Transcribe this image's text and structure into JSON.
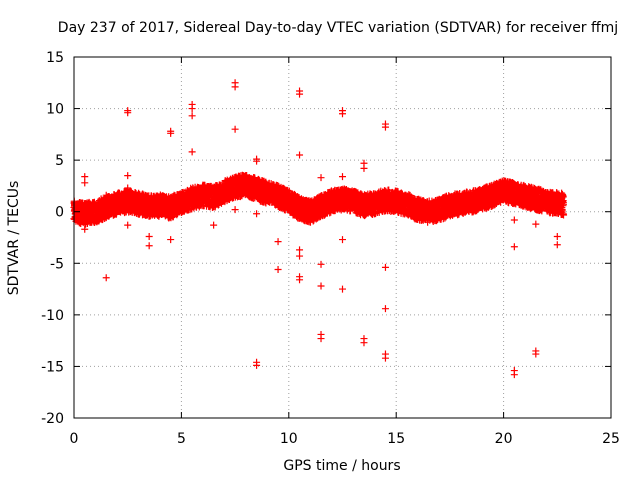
{
  "chart_data": {
    "type": "scatter",
    "title": "Day 237 of 2017, Sidereal Day-to-day VTEC variation (SDTVAR) for receiver ffmj",
    "xlabel": "GPS time / hours",
    "ylabel": "SDTVAR / TECUs",
    "xlim": [
      0,
      25
    ],
    "ylim": [
      -20,
      15
    ],
    "x_ticks": [
      0,
      5,
      10,
      15,
      20,
      25
    ],
    "y_ticks": [
      -20,
      -15,
      -10,
      -5,
      0,
      5,
      10,
      15
    ],
    "grid": true,
    "marker": "plus",
    "series_color": "#ff0000",
    "series": [
      {
        "name": "SDTVAR",
        "baseline": [
          [
            0.0,
            0.0
          ],
          [
            0.5,
            -0.2
          ],
          [
            1.0,
            0.0
          ],
          [
            1.5,
            0.4
          ],
          [
            2.0,
            0.8
          ],
          [
            2.5,
            1.0
          ],
          [
            3.0,
            0.8
          ],
          [
            3.5,
            0.5
          ],
          [
            4.0,
            0.6
          ],
          [
            4.5,
            0.4
          ],
          [
            5.0,
            0.9
          ],
          [
            5.5,
            1.3
          ],
          [
            6.0,
            1.6
          ],
          [
            6.5,
            1.4
          ],
          [
            7.0,
            2.0
          ],
          [
            7.5,
            2.4
          ],
          [
            8.0,
            2.6
          ],
          [
            8.5,
            2.2
          ],
          [
            9.0,
            1.8
          ],
          [
            9.5,
            1.5
          ],
          [
            10.0,
            1.0
          ],
          [
            10.5,
            0.3
          ],
          [
            11.0,
            0.0
          ],
          [
            11.5,
            0.5
          ],
          [
            12.0,
            1.0
          ],
          [
            12.5,
            1.2
          ],
          [
            13.0,
            1.0
          ],
          [
            13.5,
            0.6
          ],
          [
            14.0,
            0.8
          ],
          [
            14.5,
            1.1
          ],
          [
            15.0,
            1.0
          ],
          [
            15.5,
            0.7
          ],
          [
            16.0,
            0.2
          ],
          [
            16.5,
            0.0
          ],
          [
            17.0,
            0.2
          ],
          [
            17.5,
            0.6
          ],
          [
            18.0,
            0.8
          ],
          [
            18.5,
            1.0
          ],
          [
            19.0,
            1.2
          ],
          [
            19.5,
            1.6
          ],
          [
            20.0,
            2.0
          ],
          [
            20.5,
            1.8
          ],
          [
            21.0,
            1.5
          ],
          [
            21.5,
            1.2
          ],
          [
            22.0,
            1.0
          ],
          [
            22.5,
            0.8
          ],
          [
            22.8,
            0.6
          ]
        ],
        "scatter_amplitude": 1.3,
        "outliers": [
          [
            0.5,
            3.4
          ],
          [
            0.5,
            2.8
          ],
          [
            0.5,
            -1.7
          ],
          [
            1.5,
            1.6
          ],
          [
            1.5,
            -6.4
          ],
          [
            2.5,
            9.8
          ],
          [
            2.5,
            9.6
          ],
          [
            2.5,
            3.5
          ],
          [
            2.5,
            2.3
          ],
          [
            2.5,
            -1.3
          ],
          [
            3.5,
            -2.4
          ],
          [
            3.5,
            -3.3
          ],
          [
            4.5,
            7.8
          ],
          [
            4.5,
            7.6
          ],
          [
            4.5,
            -2.7
          ],
          [
            5.5,
            10.4
          ],
          [
            5.5,
            10.0
          ],
          [
            5.5,
            9.3
          ],
          [
            5.5,
            5.8
          ],
          [
            6.5,
            -1.3
          ],
          [
            7.5,
            12.5
          ],
          [
            7.5,
            12.1
          ],
          [
            7.5,
            8.0
          ],
          [
            7.5,
            0.2
          ],
          [
            8.5,
            5.1
          ],
          [
            8.5,
            4.9
          ],
          [
            8.5,
            -0.2
          ],
          [
            8.5,
            -14.6
          ],
          [
            8.5,
            -14.9
          ],
          [
            9.5,
            -2.9
          ],
          [
            9.5,
            -5.6
          ],
          [
            10.5,
            11.7
          ],
          [
            10.5,
            11.4
          ],
          [
            10.5,
            5.5
          ],
          [
            10.5,
            -3.7
          ],
          [
            10.5,
            -4.3
          ],
          [
            10.5,
            -6.3
          ],
          [
            10.5,
            -6.6
          ],
          [
            11.5,
            3.3
          ],
          [
            11.5,
            -5.1
          ],
          [
            11.5,
            -7.2
          ],
          [
            11.5,
            -11.9
          ],
          [
            11.5,
            -12.3
          ],
          [
            12.5,
            9.8
          ],
          [
            12.5,
            9.5
          ],
          [
            12.5,
            3.4
          ],
          [
            12.5,
            -2.7
          ],
          [
            12.5,
            -7.5
          ],
          [
            13.5,
            4.7
          ],
          [
            13.5,
            4.2
          ],
          [
            13.5,
            -12.3
          ],
          [
            13.5,
            -12.7
          ],
          [
            14.5,
            8.5
          ],
          [
            14.5,
            8.2
          ],
          [
            14.5,
            -5.4
          ],
          [
            14.5,
            -9.4
          ],
          [
            14.5,
            -13.8
          ],
          [
            14.5,
            -14.2
          ],
          [
            20.5,
            -3.4
          ],
          [
            20.5,
            -15.4
          ],
          [
            20.5,
            -15.8
          ],
          [
            20.5,
            -0.8
          ],
          [
            21.5,
            -13.5
          ],
          [
            21.5,
            -13.8
          ],
          [
            21.5,
            -1.2
          ],
          [
            22.5,
            -2.4
          ],
          [
            22.5,
            -3.2
          ],
          [
            22.7,
            1.8
          ],
          [
            22.7,
            1.2
          ]
        ]
      }
    ]
  }
}
